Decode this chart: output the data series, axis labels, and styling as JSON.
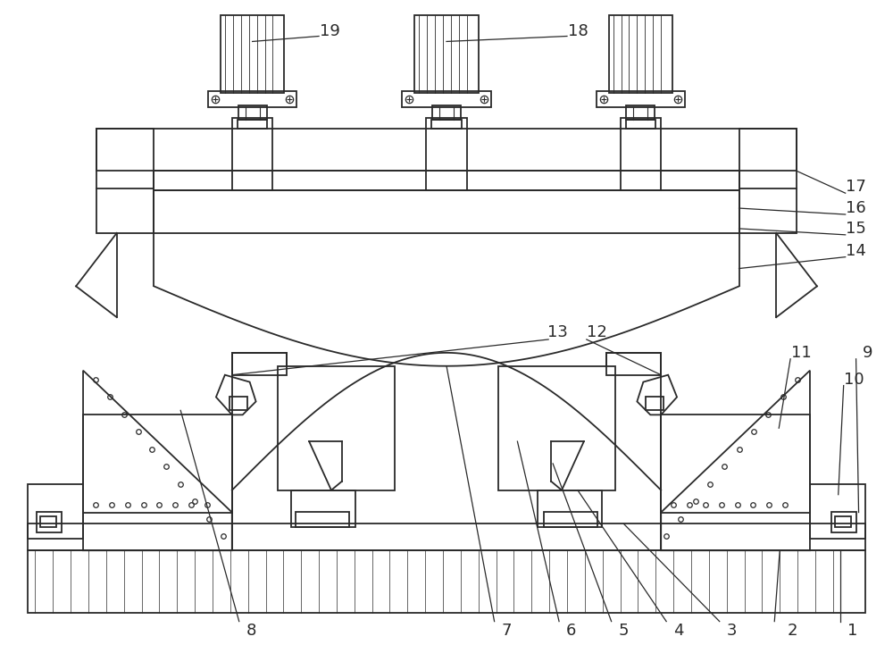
{
  "bg_color": "#ffffff",
  "lc": "#2a2a2a",
  "lw": 1.3,
  "fig_w": 10.0,
  "fig_h": 7.5,
  "dpi": 100
}
